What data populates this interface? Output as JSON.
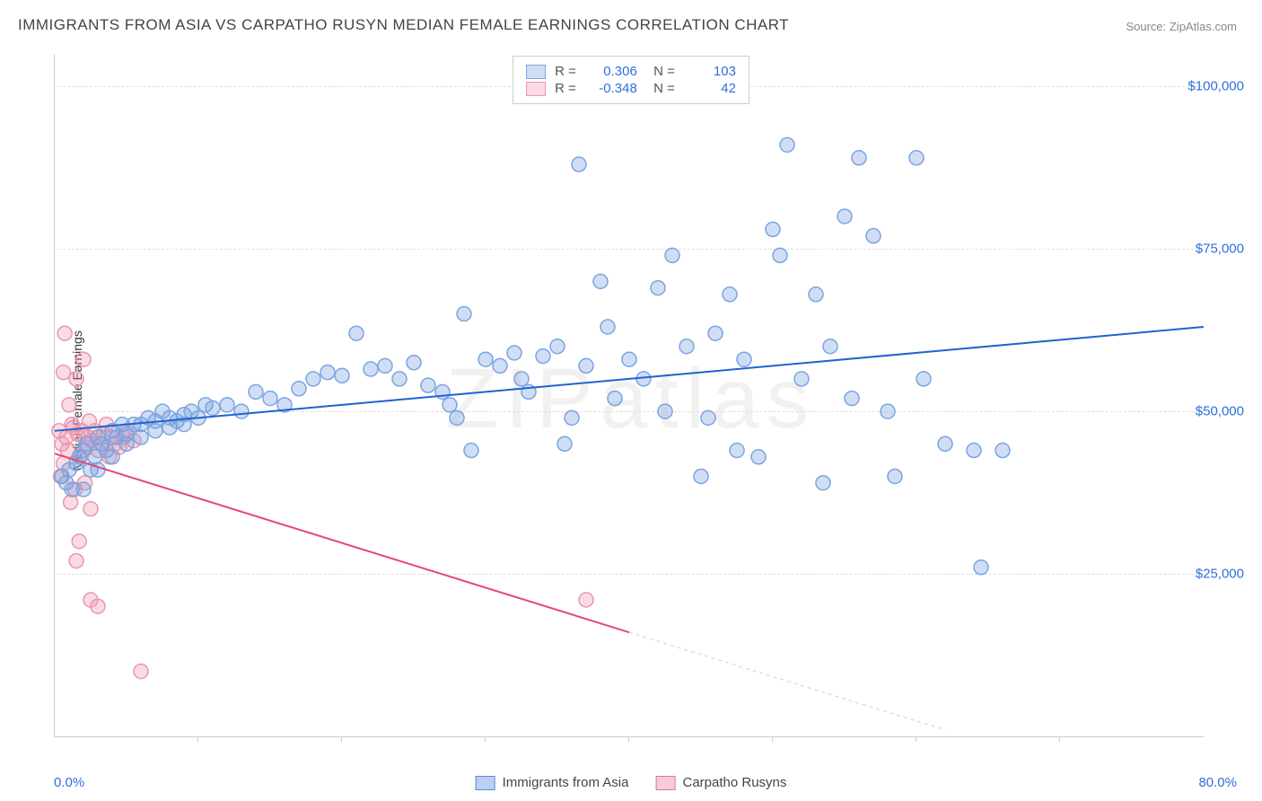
{
  "title": "IMMIGRANTS FROM ASIA VS CARPATHO RUSYN MEDIAN FEMALE EARNINGS CORRELATION CHART",
  "source_label": "Source: ZipAtlas.com",
  "ylabel": "Median Female Earnings",
  "watermark": "ZIPatlas",
  "chart": {
    "type": "scatter",
    "xlim": [
      0,
      80
    ],
    "ylim": [
      0,
      105000
    ],
    "x_min_label": "0.0%",
    "x_max_label": "80.0%",
    "y_ticks": [
      25000,
      50000,
      75000,
      100000
    ],
    "y_tick_labels": [
      "$25,000",
      "$50,000",
      "$75,000",
      "$100,000"
    ],
    "x_tick_positions": [
      10,
      20,
      30,
      40,
      50,
      60,
      70
    ],
    "background_color": "#ffffff",
    "grid_color": "#e0e0e0",
    "marker_radius": 8,
    "marker_stroke_width": 1.5,
    "line_width": 2,
    "series": [
      {
        "name": "Immigrants from Asia",
        "color_fill": "rgba(120,160,225,0.35)",
        "color_stroke": "#7aa4e0",
        "line_color": "#1e63d0",
        "R": "0.306",
        "N": "103",
        "trend": {
          "x1": 0,
          "y1": 47000,
          "x2": 80,
          "y2": 63000
        },
        "points": [
          [
            0.5,
            40000
          ],
          [
            0.8,
            39000
          ],
          [
            1.0,
            41000
          ],
          [
            1.2,
            38000
          ],
          [
            1.5,
            42000
          ],
          [
            1.7,
            43000
          ],
          [
            2.0,
            44000
          ],
          [
            2.2,
            45000
          ],
          [
            2.5,
            41000
          ],
          [
            2.8,
            43000
          ],
          [
            3.0,
            46000
          ],
          [
            3.3,
            45000
          ],
          [
            3.6,
            44000
          ],
          [
            4.0,
            47000
          ],
          [
            4.3,
            46000
          ],
          [
            4.7,
            48000
          ],
          [
            5.0,
            46500
          ],
          [
            5.5,
            48000
          ],
          [
            6.0,
            48000
          ],
          [
            6.5,
            49000
          ],
          [
            7.0,
            48500
          ],
          [
            7.5,
            50000
          ],
          [
            8.0,
            49000
          ],
          [
            8.5,
            48500
          ],
          [
            9.0,
            49500
          ],
          [
            9.5,
            50000
          ],
          [
            10.0,
            49000
          ],
          [
            10.5,
            51000
          ],
          [
            11.0,
            50500
          ],
          [
            12.0,
            51000
          ],
          [
            13.0,
            50000
          ],
          [
            14.0,
            53000
          ],
          [
            15.0,
            52000
          ],
          [
            16.0,
            51000
          ],
          [
            17.0,
            53500
          ],
          [
            18.0,
            55000
          ],
          [
            19.0,
            56000
          ],
          [
            20.0,
            55500
          ],
          [
            21.0,
            62000
          ],
          [
            22.0,
            56500
          ],
          [
            23.0,
            57000
          ],
          [
            24.0,
            55000
          ],
          [
            25.0,
            57500
          ],
          [
            26.0,
            54000
          ],
          [
            27.0,
            53000
          ],
          [
            27.5,
            51000
          ],
          [
            28.0,
            49000
          ],
          [
            28.5,
            65000
          ],
          [
            29.0,
            44000
          ],
          [
            30.0,
            58000
          ],
          [
            31.0,
            57000
          ],
          [
            32.0,
            59000
          ],
          [
            32.5,
            55000
          ],
          [
            33.0,
            53000
          ],
          [
            34.0,
            58500
          ],
          [
            35.0,
            60000
          ],
          [
            35.5,
            45000
          ],
          [
            36.0,
            49000
          ],
          [
            36.5,
            88000
          ],
          [
            37.0,
            57000
          ],
          [
            38.0,
            70000
          ],
          [
            38.5,
            63000
          ],
          [
            39.0,
            52000
          ],
          [
            40.0,
            58000
          ],
          [
            41.0,
            55000
          ],
          [
            42.0,
            69000
          ],
          [
            42.5,
            50000
          ],
          [
            43.0,
            74000
          ],
          [
            44.0,
            60000
          ],
          [
            45.0,
            40000
          ],
          [
            45.5,
            49000
          ],
          [
            46.0,
            62000
          ],
          [
            47.0,
            68000
          ],
          [
            47.5,
            44000
          ],
          [
            48.0,
            58000
          ],
          [
            49.0,
            43000
          ],
          [
            50.0,
            78000
          ],
          [
            50.5,
            74000
          ],
          [
            51.0,
            91000
          ],
          [
            52.0,
            55000
          ],
          [
            53.0,
            68000
          ],
          [
            53.5,
            39000
          ],
          [
            54.0,
            60000
          ],
          [
            55.0,
            80000
          ],
          [
            55.5,
            52000
          ],
          [
            56.0,
            89000
          ],
          [
            57.0,
            77000
          ],
          [
            58.0,
            50000
          ],
          [
            58.5,
            40000
          ],
          [
            60.0,
            89000
          ],
          [
            60.5,
            55000
          ],
          [
            62.0,
            45000
          ],
          [
            64.0,
            44000
          ],
          [
            64.5,
            26000
          ],
          [
            66.0,
            44000
          ],
          [
            2.0,
            38000
          ],
          [
            3.0,
            41000
          ],
          [
            4.0,
            43000
          ],
          [
            5.0,
            45000
          ],
          [
            6.0,
            46000
          ],
          [
            7.0,
            47000
          ],
          [
            8.0,
            47500
          ],
          [
            9.0,
            48000
          ]
        ]
      },
      {
        "name": "Carpatho Rusyns",
        "color_fill": "rgba(240,150,175,0.35)",
        "color_stroke": "#e897af",
        "line_color": "#e24a78",
        "R": "-0.348",
        "N": "42",
        "trend": {
          "x1": 0,
          "y1": 43500,
          "x2": 40,
          "y2": 16000
        },
        "trend_dashed": {
          "x1": 40,
          "y1": 16000,
          "x2": 62,
          "y2": 1000
        },
        "points": [
          [
            0.3,
            47000
          ],
          [
            0.5,
            45000
          ],
          [
            0.6,
            56000
          ],
          [
            0.7,
            62000
          ],
          [
            0.8,
            46000
          ],
          [
            0.9,
            44000
          ],
          [
            1.0,
            51000
          ],
          [
            1.1,
            36000
          ],
          [
            1.2,
            48000
          ],
          [
            1.3,
            47500
          ],
          [
            1.4,
            38000
          ],
          [
            1.5,
            55000
          ],
          [
            1.6,
            46500
          ],
          [
            1.7,
            30000
          ],
          [
            1.8,
            43000
          ],
          [
            1.9,
            47000
          ],
          [
            2.0,
            58000
          ],
          [
            2.1,
            39000
          ],
          [
            2.2,
            44500
          ],
          [
            2.3,
            46000
          ],
          [
            2.4,
            48500
          ],
          [
            2.5,
            35000
          ],
          [
            2.6,
            45500
          ],
          [
            2.8,
            47000
          ],
          [
            3.0,
            44000
          ],
          [
            3.2,
            45000
          ],
          [
            3.4,
            46500
          ],
          [
            3.6,
            48000
          ],
          [
            3.8,
            43000
          ],
          [
            4.0,
            46000
          ],
          [
            4.2,
            45000
          ],
          [
            4.5,
            44500
          ],
          [
            4.8,
            46000
          ],
          [
            5.0,
            47000
          ],
          [
            5.5,
            45500
          ],
          [
            1.5,
            27000
          ],
          [
            2.5,
            21000
          ],
          [
            3.0,
            20000
          ],
          [
            6.0,
            10000
          ],
          [
            37.0,
            21000
          ],
          [
            0.4,
            40000
          ],
          [
            0.6,
            42000
          ]
        ]
      }
    ]
  },
  "legend_bottom": [
    {
      "label": "Immigrants from Asia",
      "fill": "rgba(120,160,225,0.5)",
      "stroke": "#5a8dd6"
    },
    {
      "label": "Carpatho Rusyns",
      "fill": "rgba(240,150,175,0.5)",
      "stroke": "#d87a9a"
    }
  ]
}
